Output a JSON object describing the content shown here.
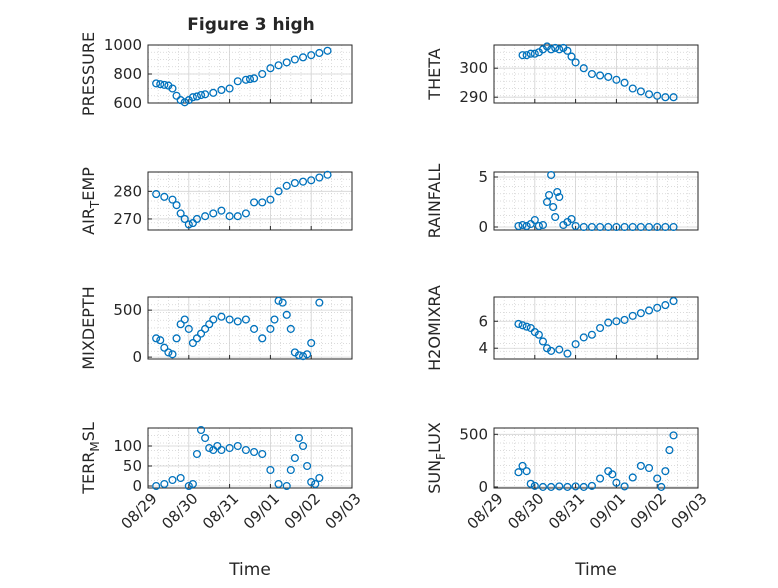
{
  "figure": {
    "title": "Figure 3 high"
  },
  "colors": {
    "series": "#0072BD",
    "axis": "#262626",
    "grid": "#d3d3d3"
  },
  "chart_data": [
    {
      "type": "scatter",
      "ylabel": "PRESSURE",
      "ylim": [
        600,
        1000
      ],
      "yticks": [
        600,
        800,
        1000
      ],
      "x": [
        0.2,
        0.3,
        0.4,
        0.5,
        0.6,
        0.7,
        0.8,
        0.9,
        1.0,
        1.1,
        1.2,
        1.3,
        1.4,
        1.6,
        1.8,
        2.0,
        2.2,
        2.4,
        2.5,
        2.6,
        2.8,
        3.0,
        3.2,
        3.4,
        3.6,
        3.8,
        4.0,
        4.2,
        4.4
      ],
      "y": [
        735,
        730,
        725,
        720,
        700,
        650,
        620,
        605,
        620,
        640,
        645,
        655,
        660,
        670,
        690,
        700,
        750,
        760,
        765,
        770,
        800,
        840,
        860,
        880,
        900,
        915,
        930,
        945,
        960
      ]
    },
    {
      "type": "scatter",
      "ylabel": "THETA",
      "ylim": [
        288,
        308
      ],
      "yticks": [
        290,
        300
      ],
      "x": [
        0.7,
        0.8,
        0.9,
        1.0,
        1.1,
        1.2,
        1.3,
        1.4,
        1.5,
        1.6,
        1.7,
        1.8,
        1.9,
        2.0,
        2.2,
        2.4,
        2.6,
        2.8,
        3.0,
        3.2,
        3.4,
        3.6,
        3.8,
        4.0,
        4.2,
        4.4
      ],
      "y": [
        304.5,
        304.5,
        305,
        305,
        305.5,
        306.5,
        307.5,
        306.5,
        307,
        306.5,
        307,
        306,
        304,
        302,
        300,
        298,
        297.5,
        297,
        296,
        295,
        293,
        292,
        291,
        290.5,
        290,
        290
      ]
    },
    {
      "type": "scatter",
      "ylabel": "AIR_TEMP",
      "ylim": [
        266,
        287
      ],
      "yticks": [
        270,
        280
      ],
      "x": [
        0.2,
        0.4,
        0.6,
        0.7,
        0.8,
        0.9,
        1.0,
        1.1,
        1.2,
        1.4,
        1.6,
        1.8,
        2.0,
        2.2,
        2.4,
        2.6,
        2.8,
        3.0,
        3.2,
        3.4,
        3.6,
        3.8,
        4.0,
        4.2,
        4.4
      ],
      "y": [
        279,
        278,
        277,
        275,
        272,
        270,
        268,
        268.5,
        270,
        271,
        272,
        273,
        271,
        271,
        272,
        276,
        276,
        277,
        280,
        282,
        283,
        283.5,
        284,
        285,
        286
      ]
    },
    {
      "type": "scatter",
      "ylabel": "RAINFALL",
      "ylim": [
        -0.3,
        5.5
      ],
      "yticks": [
        0,
        5
      ],
      "x": [
        0.6,
        0.7,
        0.8,
        0.9,
        1.0,
        1.1,
        1.2,
        1.3,
        1.35,
        1.4,
        1.45,
        1.5,
        1.55,
        1.6,
        1.7,
        1.8,
        1.9,
        2.0,
        2.2,
        2.4,
        2.6,
        2.8,
        3.0,
        3.2,
        3.4,
        3.6,
        3.8,
        4.0,
        4.2,
        4.4
      ],
      "y": [
        0.1,
        0.2,
        0.1,
        0.3,
        0.7,
        0.1,
        0.2,
        2.5,
        3.2,
        5.2,
        2.0,
        1.0,
        3.5,
        3.0,
        0.2,
        0.5,
        0.8,
        0.1,
        0,
        0,
        0,
        0,
        0,
        0,
        0,
        0,
        0,
        0,
        0,
        0
      ]
    },
    {
      "type": "scatter",
      "ylabel": "MIXDEPTH",
      "ylim": [
        -20,
        640
      ],
      "yticks": [
        0,
        500
      ],
      "x": [
        0.2,
        0.3,
        0.4,
        0.5,
        0.6,
        0.7,
        0.8,
        0.9,
        1.0,
        1.1,
        1.2,
        1.3,
        1.4,
        1.5,
        1.6,
        1.8,
        2.0,
        2.2,
        2.4,
        2.6,
        2.8,
        3.0,
        3.1,
        3.2,
        3.3,
        3.4,
        3.5,
        3.6,
        3.7,
        3.8,
        3.9,
        4.0,
        4.2
      ],
      "y": [
        200,
        180,
        100,
        50,
        30,
        200,
        350,
        400,
        300,
        150,
        200,
        250,
        300,
        350,
        400,
        430,
        400,
        380,
        400,
        300,
        200,
        300,
        400,
        600,
        580,
        450,
        300,
        50,
        20,
        10,
        30,
        150,
        580
      ]
    },
    {
      "type": "scatter",
      "ylabel": "H2OMIXRA",
      "ylim": [
        3.2,
        7.8
      ],
      "yticks": [
        4,
        6
      ],
      "x": [
        0.6,
        0.7,
        0.8,
        0.9,
        1.0,
        1.1,
        1.2,
        1.3,
        1.4,
        1.6,
        1.8,
        2.0,
        2.2,
        2.4,
        2.6,
        2.8,
        3.0,
        3.2,
        3.4,
        3.6,
        3.8,
        4.0,
        4.2,
        4.4
      ],
      "y": [
        5.8,
        5.7,
        5.6,
        5.5,
        5.2,
        5.0,
        4.5,
        4.0,
        3.8,
        3.9,
        3.6,
        4.3,
        4.8,
        5.0,
        5.5,
        5.9,
        6.0,
        6.1,
        6.4,
        6.6,
        6.8,
        7.0,
        7.2,
        7.5
      ]
    },
    {
      "type": "scatter",
      "ylabel": "TERR_MSL",
      "ylim": [
        -5,
        145
      ],
      "yticks": [
        0,
        50,
        100
      ],
      "x": [
        0.2,
        0.4,
        0.6,
        0.8,
        1.0,
        1.1,
        1.2,
        1.3,
        1.4,
        1.5,
        1.6,
        1.7,
        1.8,
        2.0,
        2.2,
        2.4,
        2.6,
        2.8,
        3.0,
        3.2,
        3.4,
        3.5,
        3.6,
        3.7,
        3.8,
        3.9,
        4.0,
        4.1,
        4.2
      ],
      "y": [
        0,
        5,
        15,
        20,
        0,
        5,
        80,
        140,
        120,
        95,
        90,
        100,
        90,
        95,
        100,
        90,
        85,
        80,
        40,
        5,
        0,
        40,
        70,
        120,
        100,
        50,
        10,
        5,
        20
      ]
    },
    {
      "type": "scatter",
      "ylabel": "SUN_FLUX",
      "ylim": [
        -10,
        560
      ],
      "yticks": [
        0,
        500
      ],
      "x": [
        0.6,
        0.7,
        0.8,
        0.9,
        1.0,
        1.2,
        1.4,
        1.6,
        1.8,
        2.0,
        2.2,
        2.4,
        2.6,
        2.8,
        2.9,
        3.0,
        3.2,
        3.4,
        3.6,
        3.8,
        4.0,
        4.1,
        4.2,
        4.3,
        4.4
      ],
      "y": [
        140,
        200,
        150,
        30,
        10,
        0,
        0,
        5,
        0,
        5,
        0,
        10,
        80,
        150,
        120,
        40,
        5,
        90,
        200,
        180,
        80,
        0,
        150,
        350,
        490
      ]
    }
  ],
  "layout_text": {
    "xticklabels": [
      "08/29",
      "08/30",
      "08/31",
      "09/01",
      "09/02",
      "09/03"
    ],
    "xlabel": "Time",
    "ylabels": {
      "air_main": "AIR",
      "air_sub": "T",
      "air_rest": "EMP",
      "terr_main": "TERR",
      "terr_sub": "M",
      "terr_rest": "SL",
      "sun_main": "SUN",
      "sun_sub": "F",
      "sun_rest": "LUX"
    }
  }
}
